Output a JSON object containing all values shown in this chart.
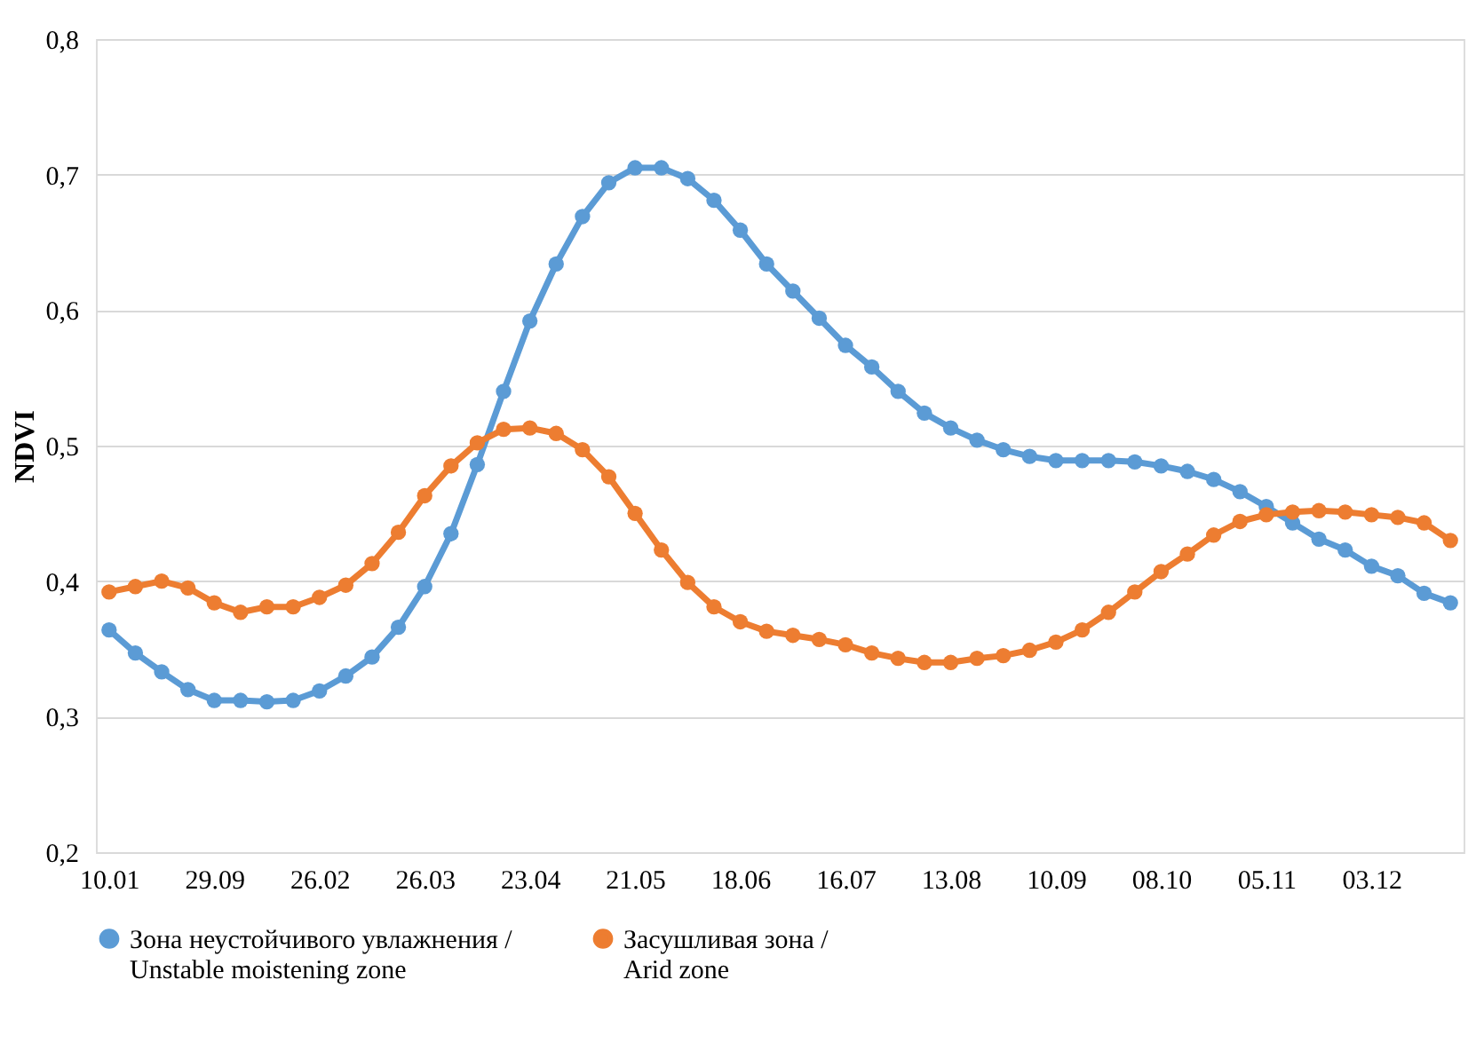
{
  "chart_data": {
    "type": "line",
    "ylabel": "NDVI",
    "categories": [
      "10.01",
      null,
      null,
      null,
      "29.09",
      null,
      null,
      null,
      "26.02",
      null,
      null,
      null,
      "26.03",
      null,
      null,
      null,
      "23.04",
      null,
      null,
      null,
      "21.05",
      null,
      null,
      null,
      "18.06",
      null,
      null,
      null,
      "16.07",
      null,
      null,
      null,
      "13.08",
      null,
      null,
      null,
      "10.09",
      null,
      null,
      null,
      "08.10",
      null,
      null,
      null,
      "05.11",
      null,
      null,
      null,
      "03.12",
      null,
      null,
      null
    ],
    "series": [
      {
        "name": "Зона неустойчивого увлажнения /\nUnstable moistening zone",
        "color": "#5b9bd5",
        "values": [
          0.364,
          0.347,
          0.333,
          0.32,
          0.312,
          0.312,
          0.311,
          0.312,
          0.319,
          0.33,
          0.344,
          0.366,
          0.396,
          0.435,
          0.486,
          0.54,
          0.592,
          0.634,
          0.669,
          0.694,
          0.705,
          0.705,
          0.697,
          0.681,
          0.659,
          0.634,
          0.614,
          0.594,
          0.574,
          0.558,
          0.54,
          0.524,
          0.513,
          0.504,
          0.497,
          0.492,
          0.489,
          0.489,
          0.489,
          0.488,
          0.485,
          0.481,
          0.475,
          0.466,
          0.455,
          0.443,
          0.431,
          0.423,
          0.411,
          0.404,
          0.391,
          0.384
        ]
      },
      {
        "name": "Засушливая зона /\nArid zone",
        "color": "#ed7d31",
        "values": [
          0.392,
          0.396,
          0.4,
          0.395,
          0.384,
          0.377,
          0.381,
          0.381,
          0.388,
          0.397,
          0.413,
          0.436,
          0.463,
          0.485,
          0.502,
          0.512,
          0.513,
          0.509,
          0.497,
          0.477,
          0.45,
          0.423,
          0.399,
          0.381,
          0.37,
          0.363,
          0.36,
          0.357,
          0.353,
          0.347,
          0.343,
          0.34,
          0.34,
          0.343,
          0.345,
          0.349,
          0.355,
          0.364,
          0.377,
          0.392,
          0.407,
          0.42,
          0.434,
          0.444,
          0.449,
          0.451,
          0.452,
          0.451,
          0.449,
          0.447,
          0.443,
          0.43
        ]
      }
    ],
    "ylim": [
      0.2,
      0.8
    ],
    "yticks": [
      {
        "value": 0.2,
        "label": "0,2"
      },
      {
        "value": 0.3,
        "label": "0,3"
      },
      {
        "value": 0.4,
        "label": "0,4"
      },
      {
        "value": 0.5,
        "label": "0,5"
      },
      {
        "value": 0.6,
        "label": "0,6"
      },
      {
        "value": 0.7,
        "label": "0,7"
      },
      {
        "value": 0.8,
        "label": "0,8"
      }
    ],
    "grid": "y",
    "legend": "bottom",
    "marker": "circle",
    "line_style": "solid"
  }
}
